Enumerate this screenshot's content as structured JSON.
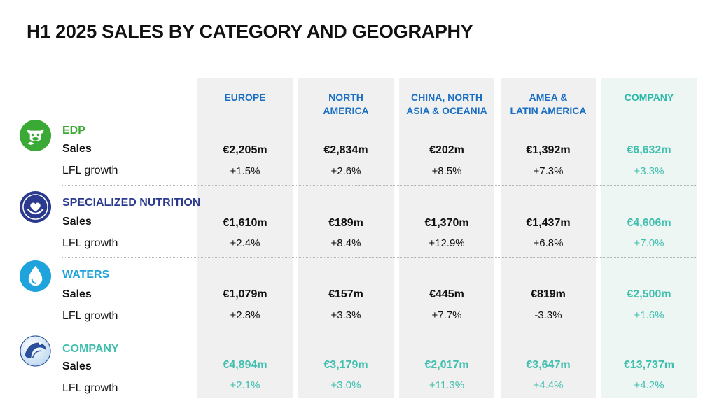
{
  "title": "H1 2025 SALES BY CATEGORY AND GEOGRAPHY",
  "columns": [
    {
      "label": "EUROPE"
    },
    {
      "label": "NORTH\nAMERICA"
    },
    {
      "label": "CHINA, NORTH\nASIA & OCEANIA"
    },
    {
      "label": "AMEA &\nLATIN AMERICA"
    },
    {
      "label": "COMPANY"
    }
  ],
  "row_labels": {
    "sales": "Sales",
    "lfl": "LFL growth"
  },
  "categories": [
    {
      "name": "EDP",
      "icon": "cow-icon",
      "color": "#3aa935",
      "sales": [
        "€2,205m",
        "€2,834m",
        "€202m",
        "€1,392m",
        "€6,632m"
      ],
      "lfl": [
        "+1.5%",
        "+2.6%",
        "+8.5%",
        "+7.3%",
        "+3.3%"
      ]
    },
    {
      "name": "SPECIALIZED NUTRITION",
      "icon": "hand-heart-icon",
      "color": "#2b3a8f",
      "sales": [
        "€1,610m",
        "€189m",
        "€1,370m",
        "€1,437m",
        "€4,606m"
      ],
      "lfl": [
        "+2.4%",
        "+8.4%",
        "+12.9%",
        "+6.8%",
        "+7.0%"
      ]
    },
    {
      "name": "WATERS",
      "icon": "water-drop-icon",
      "color": "#1ea3dc",
      "sales": [
        "€1,079m",
        "€157m",
        "€445m",
        "€819m",
        "€2,500m"
      ],
      "lfl": [
        "+2.8%",
        "+3.3%",
        "+7.7%",
        "-3.3%",
        "+1.6%"
      ]
    },
    {
      "name": "COMPANY",
      "icon": "company-logo-icon",
      "color": "#3fbfae",
      "sales": [
        "€4,894m",
        "€3,179m",
        "€2,017m",
        "€3,647m",
        "€13,737m"
      ],
      "lfl": [
        "+2.1%",
        "+3.0%",
        "+11.3%",
        "+4.4%",
        "+4.2%"
      ]
    }
  ],
  "colors": {
    "column_header": "#1a6fc4",
    "company_accent": "#3fbfae",
    "column_bg": "#f0f0f0",
    "company_column_bg": "#eef6f4"
  }
}
